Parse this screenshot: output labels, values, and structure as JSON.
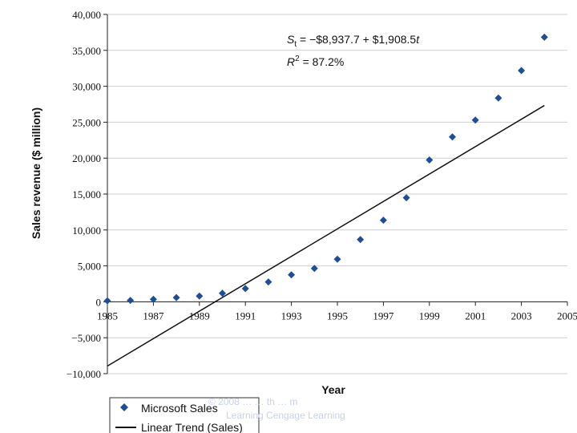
{
  "chart_data": {
    "type": "scatter",
    "title": "",
    "xlabel": "Year",
    "ylabel": "Sales revenue ($ million)",
    "xlim": [
      1985,
      2005
    ],
    "ylim": [
      -10000,
      40000
    ],
    "x_ticks": [
      "1985",
      "1987",
      "1989",
      "1991",
      "1993",
      "1995",
      "1997",
      "1999",
      "2001",
      "2003",
      "2005"
    ],
    "y_ticks": [
      "40,000",
      "35,000",
      "30,000",
      "25,000",
      "20,000",
      "15,000",
      "10,000",
      "5,000",
      "0",
      "−5,000",
      "−10,000"
    ],
    "series": [
      {
        "name": "Microsoft Sales",
        "kind": "scatter",
        "color": "#1f4e96",
        "x": [
          1985,
          1986,
          1987,
          1988,
          1989,
          1990,
          1991,
          1992,
          1993,
          1994,
          1995,
          1996,
          1997,
          1998,
          1999,
          2000,
          2001,
          2002,
          2003,
          2004
        ],
        "y": [
          140,
          198,
          346,
          591,
          804,
          1183,
          1843,
          2759,
          3753,
          4649,
          5937,
          8671,
          11358,
          14484,
          19747,
          22956,
          25296,
          28365,
          32187,
          36835
        ]
      },
      {
        "name": "Linear Trend (Sales)",
        "kind": "line",
        "color": "#111111",
        "intercept": -8937.7,
        "slope": 1908.5,
        "x_start": 1985,
        "x_end": 2004
      }
    ],
    "annotation": {
      "equation_var": "S",
      "equation_sub": "t",
      "equation_rhs": " = −$8,937.7 + $1,908.5",
      "equation_t": "t",
      "r2_var": "R",
      "r2_sup": "2",
      "r2_rhs": " = 87.2%"
    },
    "legend": {
      "position": "bottom-left",
      "items": [
        "Microsoft Sales",
        "Linear Trend (Sales)"
      ]
    }
  },
  "watermark": {
    "line1": "© 2008 … … th … m",
    "line2": "Learning Cengage Learning"
  }
}
